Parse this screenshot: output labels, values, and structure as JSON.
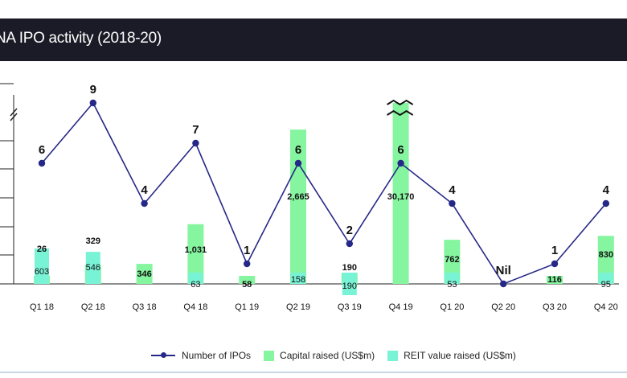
{
  "title": "NA IPO activity (2018-20)",
  "colors": {
    "ipo_line": "#262887",
    "capital_bar": "#86f5a0",
    "reit_bar": "#79f3d6",
    "title_bar": "#1b1b27"
  },
  "legend": {
    "ipos": "Number of IPOs",
    "capital": "Capital raised (US$m)",
    "reit": "REIT value raised (US$m)"
  },
  "chart_data": {
    "type": "bar",
    "title": "NA IPO activity (2018-20)",
    "categories": [
      "Q1 18",
      "Q2 18",
      "Q3 18",
      "Q4 18",
      "Q1 19",
      "Q2 19",
      "Q3 19",
      "Q4 19",
      "Q1 20",
      "Q2 20",
      "Q3 20",
      "Q4 20"
    ],
    "series": [
      {
        "name": "Number of IPOs",
        "type": "line",
        "values": [
          6,
          9,
          4,
          7,
          1,
          6,
          2,
          6,
          4,
          0,
          1,
          4
        ],
        "labels": [
          "6",
          "9",
          "4",
          "7",
          "1",
          "6",
          "2",
          "6",
          "4",
          "Nil",
          "1",
          "4"
        ]
      },
      {
        "name": "Capital raised (US$m)",
        "type": "bar",
        "values": [
          26,
          329,
          346,
          1031,
          58,
          2665,
          190,
          30170,
          762,
          0,
          116,
          830
        ],
        "labels": [
          "26",
          "329",
          "346",
          "1,031",
          "58",
          "2,665",
          "190",
          "30,170",
          "762",
          "",
          "116",
          "830"
        ]
      },
      {
        "name": "REIT value raised (US$m)",
        "type": "bar",
        "values": [
          603,
          546,
          0,
          63,
          0,
          158,
          190,
          0,
          53,
          0,
          0,
          95
        ],
        "labels": [
          "603",
          "546",
          "",
          "63",
          "",
          "158",
          "190",
          "",
          "53",
          "",
          "",
          "95"
        ]
      }
    ],
    "axis_break": true,
    "legend_position": "bottom"
  }
}
